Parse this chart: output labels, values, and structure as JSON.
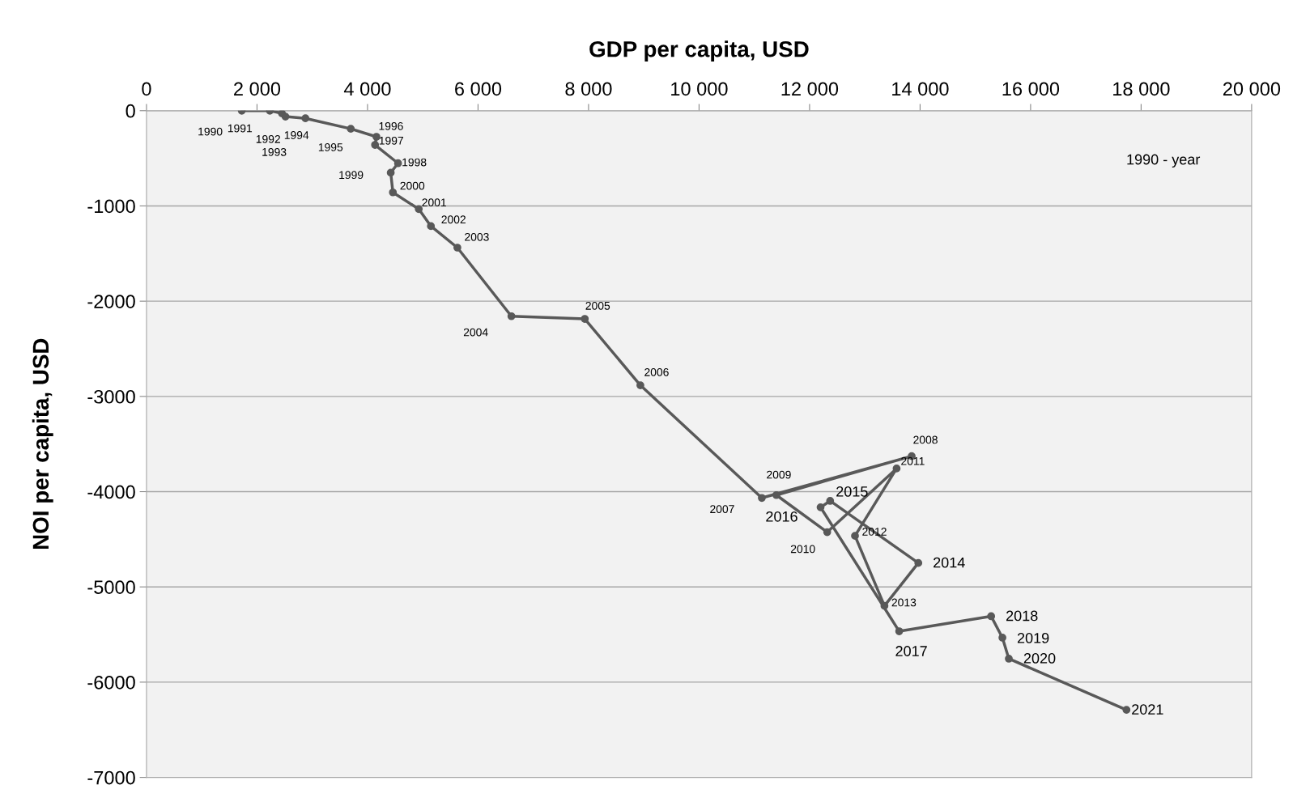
{
  "chart_data": {
    "type": "line",
    "xlabel": "GDP per capita, USD",
    "ylabel": "NOI per capita, USD",
    "x": [
      1724,
      2232,
      2451,
      2515,
      2876,
      3697,
      4161,
      4136,
      4552,
      4420,
      4459,
      4927,
      5147,
      5626,
      6604,
      7932,
      8938,
      11136,
      13848,
      11399,
      12319,
      13575,
      12822,
      13355,
      13968,
      12372,
      12199,
      13622,
      15286,
      15490,
      15606,
      17735
    ],
    "series": [
      {
        "color": "#595959",
        "values": [
          0,
          0,
          -28,
          -62,
          -80,
          -190,
          -274,
          -359,
          -552,
          -651,
          -858,
          -1033,
          -1212,
          -1438,
          -2158,
          -2186,
          -2883,
          -4066,
          -3627,
          -4036,
          -4425,
          -3757,
          -4464,
          -5199,
          -4749,
          -4097,
          -4164,
          -5466,
          -5308,
          -5533,
          -5754,
          -6291
        ]
      }
    ],
    "annotations": [
      {
        "text": "1990",
        "x": 1724,
        "y": 0
      },
      {
        "text": "1991",
        "x": 2232,
        "y": 0
      },
      {
        "text": "1992",
        "x": 2451,
        "y": -28
      },
      {
        "text": "1993",
        "x": 2515,
        "y": -62
      },
      {
        "text": "1994",
        "x": 2876,
        "y": -80
      },
      {
        "text": "1995",
        "x": 3697,
        "y": -190
      },
      {
        "text": "1996",
        "x": 4161,
        "y": -274
      },
      {
        "text": "1997",
        "x": 4136,
        "y": -359
      },
      {
        "text": "1998",
        "x": 4552,
        "y": -552
      },
      {
        "text": "1999",
        "x": 4420,
        "y": -651
      },
      {
        "text": "2000",
        "x": 4459,
        "y": -858
      },
      {
        "text": "2001",
        "x": 4927,
        "y": -1033
      },
      {
        "text": "2002",
        "x": 5147,
        "y": -1212
      },
      {
        "text": "2003",
        "x": 5626,
        "y": -1438
      },
      {
        "text": "2004",
        "x": 6604,
        "y": -2158
      },
      {
        "text": "2005",
        "x": 7932,
        "y": -2186
      },
      {
        "text": "2006",
        "x": 8938,
        "y": -2883
      },
      {
        "text": "2007",
        "x": 11136,
        "y": -4066
      },
      {
        "text": "2008",
        "x": 13848,
        "y": -3627
      },
      {
        "text": "2009",
        "x": 11399,
        "y": -4036
      },
      {
        "text": "2010",
        "x": 12319,
        "y": -4425
      },
      {
        "text": "2011",
        "x": 13575,
        "y": -3757
      },
      {
        "text": "2012",
        "x": 12822,
        "y": -4464
      },
      {
        "text": "2013",
        "x": 13355,
        "y": -5199
      },
      {
        "text": "2014",
        "x": 13968,
        "y": -4749
      },
      {
        "text": "2015",
        "x": 12372,
        "y": -4097
      },
      {
        "text": "2016",
        "x": 12199,
        "y": -4164
      },
      {
        "text": "2017",
        "x": 13622,
        "y": -5466
      },
      {
        "text": "2018",
        "x": 15286,
        "y": -5308
      },
      {
        "text": "2019",
        "x": 15490,
        "y": -5533
      },
      {
        "text": "2020",
        "x": 15606,
        "y": -5754
      },
      {
        "text": "2021",
        "x": 17735,
        "y": -6291
      },
      "1990 - year"
    ],
    "xlim": [
      0,
      20000
    ],
    "xticks": [
      0,
      {
        "value": 2000,
        "label": "2 000"
      },
      {
        "value": 4000,
        "label": "4 000"
      },
      {
        "value": 6000,
        "label": "6 000"
      },
      {
        "value": 8000,
        "label": "8 000"
      },
      {
        "value": 10000,
        "label": "10 000"
      },
      {
        "value": 12000,
        "label": "12 000"
      },
      {
        "value": 14000,
        "label": "14 000"
      },
      {
        "value": 16000,
        "label": "16 000"
      },
      {
        "value": 18000,
        "label": "18 000"
      },
      {
        "value": 20000,
        "label": "20 000"
      }
    ],
    "ylim": [
      -7000,
      0
    ],
    "yticks": [
      0,
      -1000,
      -2000,
      -3000,
      -4000,
      -5000,
      -6000,
      -7000
    ],
    "grid": "y",
    "marker": "circle",
    "line_style": "solid",
    "legend": false
  }
}
